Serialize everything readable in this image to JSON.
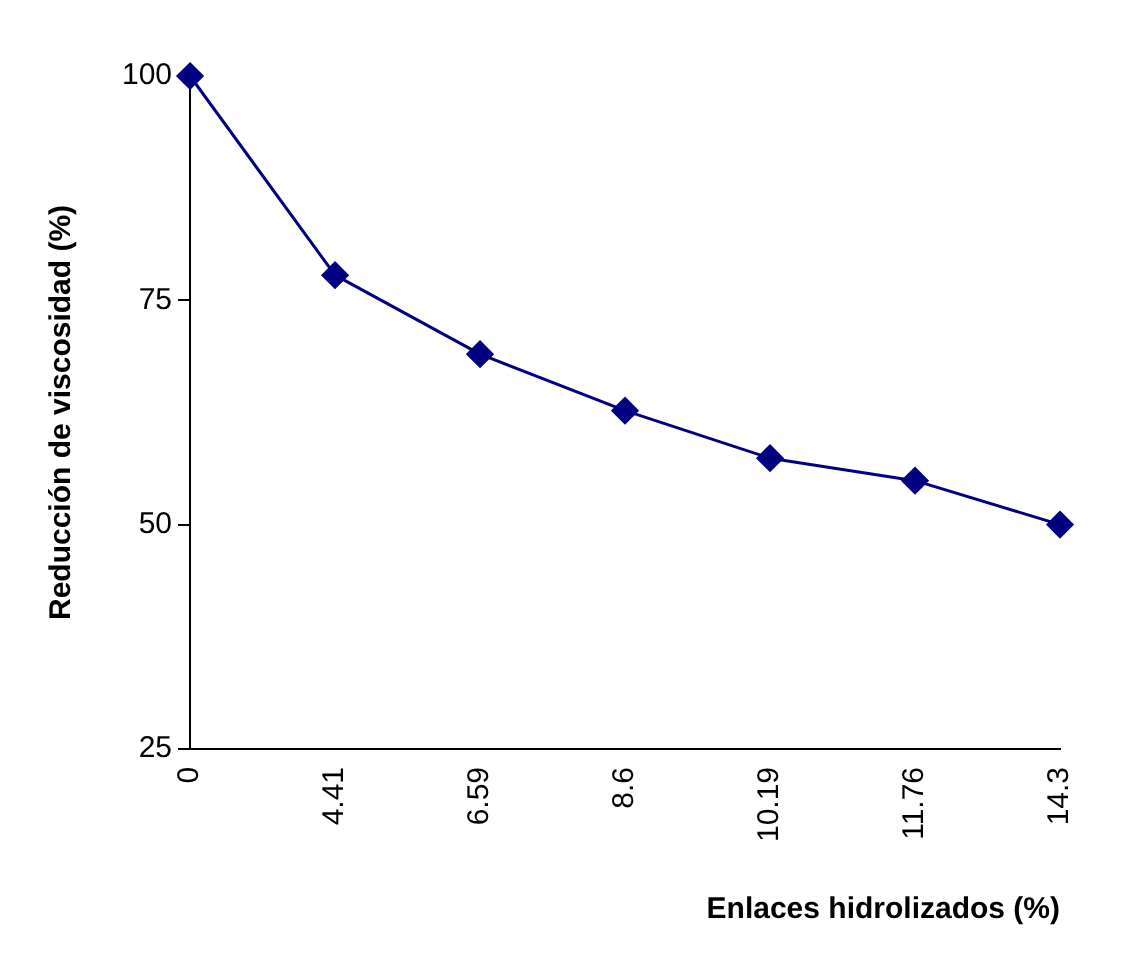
{
  "chart_data": {
    "type": "line",
    "xlabel": "Enlaces hidrolizados (%)",
    "ylabel": "Reducción de viscosidad (%)",
    "categories": [
      "0",
      "4.41",
      "6.59",
      "8.6",
      "10.19",
      "11.76",
      "14.3"
    ],
    "series": [
      {
        "color": "#000080",
        "values": [
          100,
          77.8,
          69,
          62.7,
          57.4,
          54.9,
          50
        ]
      }
    ],
    "ylim": [
      25,
      100
    ],
    "yticks": [
      25,
      50,
      75,
      100
    ],
    "grid": false,
    "legend": false,
    "marker": "diamond",
    "line_style": "solid"
  }
}
